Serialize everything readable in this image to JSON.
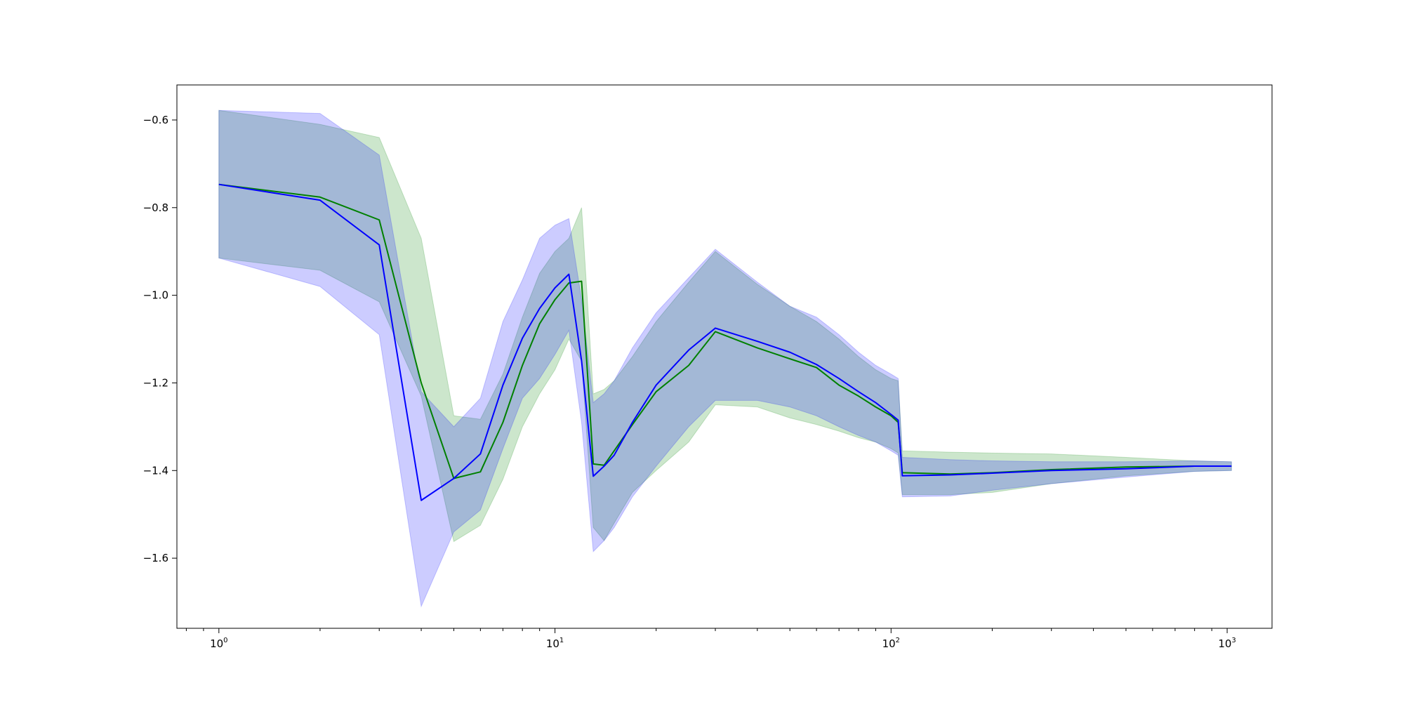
{
  "chart_data": {
    "type": "line",
    "x_scale": "log",
    "xlim": [
      0.75,
      1360
    ],
    "ylim": [
      -1.76,
      -0.52
    ],
    "grid": false,
    "x_major_ticks": [
      1,
      10,
      100,
      1000
    ],
    "x_tick_labels": [
      {
        "base": "10",
        "exp": "0"
      },
      {
        "base": "10",
        "exp": "1"
      },
      {
        "base": "10",
        "exp": "2"
      },
      {
        "base": "10",
        "exp": "3"
      }
    ],
    "y_ticks": [
      -1.6,
      -1.4,
      -1.2,
      -1.0,
      -0.8,
      -0.6
    ],
    "y_tick_labels": [
      "−1.6",
      "−1.4",
      "−1.2",
      "−1.0",
      "−0.8",
      "−0.6"
    ],
    "series": [
      {
        "color": "#008000",
        "band_color": "#008000",
        "points": [
          [
            1,
            -0.747,
            -0.578,
            -0.915
          ],
          [
            2,
            -0.776,
            -0.61,
            -0.943
          ],
          [
            3,
            -0.828,
            -0.64,
            -1.015
          ],
          [
            4,
            -1.2,
            -0.87,
            -1.23
          ],
          [
            5,
            -1.418,
            -1.275,
            -1.562
          ],
          [
            6,
            -1.403,
            -1.283,
            -1.525
          ],
          [
            7,
            -1.29,
            -1.18,
            -1.42
          ],
          [
            8,
            -1.16,
            -1.05,
            -1.3
          ],
          [
            9,
            -1.065,
            -0.95,
            -1.225
          ],
          [
            10,
            -1.01,
            -0.9,
            -1.17
          ],
          [
            11,
            -0.972,
            -0.87,
            -1.1
          ],
          [
            12,
            -0.968,
            -0.8,
            -1.15
          ],
          [
            13,
            -1.385,
            -1.225,
            -1.53
          ],
          [
            14,
            -1.388,
            -1.215,
            -1.56
          ],
          [
            15,
            -1.355,
            -1.195,
            -1.52
          ],
          [
            17,
            -1.295,
            -1.14,
            -1.45
          ],
          [
            20,
            -1.22,
            -1.06,
            -1.4
          ],
          [
            25,
            -1.16,
            -0.97,
            -1.335
          ],
          [
            30,
            -1.083,
            -0.9,
            -1.25
          ],
          [
            40,
            -1.12,
            -0.975,
            -1.255
          ],
          [
            50,
            -1.145,
            -1.025,
            -1.28
          ],
          [
            60,
            -1.165,
            -1.06,
            -1.295
          ],
          [
            70,
            -1.205,
            -1.1,
            -1.31
          ],
          [
            80,
            -1.23,
            -1.14,
            -1.325
          ],
          [
            90,
            -1.255,
            -1.17,
            -1.335
          ],
          [
            100,
            -1.275,
            -1.19,
            -1.35
          ],
          [
            105,
            -1.29,
            -1.195,
            -1.36
          ],
          [
            108,
            -1.405,
            -1.355,
            -1.455
          ],
          [
            150,
            -1.408,
            -1.358,
            -1.455
          ],
          [
            200,
            -1.405,
            -1.36,
            -1.45
          ],
          [
            300,
            -1.398,
            -1.362,
            -1.43
          ],
          [
            500,
            -1.392,
            -1.37,
            -1.412
          ],
          [
            800,
            -1.39,
            -1.378,
            -1.402
          ],
          [
            1030,
            -1.39,
            -1.38,
            -1.4
          ]
        ]
      },
      {
        "color": "#0000ff",
        "band_color": "#0000ff",
        "points": [
          [
            1,
            -0.747,
            -0.578,
            -0.915
          ],
          [
            2,
            -0.783,
            -0.585,
            -0.98
          ],
          [
            3,
            -0.885,
            -0.68,
            -1.09
          ],
          [
            4,
            -1.468,
            -1.22,
            -1.71
          ],
          [
            5,
            -1.418,
            -1.3,
            -1.54
          ],
          [
            6,
            -1.362,
            -1.235,
            -1.49
          ],
          [
            7,
            -1.205,
            -1.06,
            -1.35
          ],
          [
            8,
            -1.098,
            -0.965,
            -1.235
          ],
          [
            9,
            -1.03,
            -0.87,
            -1.19
          ],
          [
            10,
            -0.983,
            -0.84,
            -1.135
          ],
          [
            11,
            -0.952,
            -0.825,
            -1.08
          ],
          [
            12,
            -1.15,
            -1.01,
            -1.29
          ],
          [
            13,
            -1.413,
            -1.245,
            -1.585
          ],
          [
            14,
            -1.39,
            -1.225,
            -1.56
          ],
          [
            15,
            -1.365,
            -1.195,
            -1.53
          ],
          [
            17,
            -1.29,
            -1.12,
            -1.46
          ],
          [
            20,
            -1.205,
            -1.04,
            -1.39
          ],
          [
            25,
            -1.125,
            -0.96,
            -1.3
          ],
          [
            30,
            -1.075,
            -0.895,
            -1.24
          ],
          [
            40,
            -1.105,
            -0.97,
            -1.24
          ],
          [
            50,
            -1.13,
            -1.025,
            -1.255
          ],
          [
            60,
            -1.158,
            -1.05,
            -1.275
          ],
          [
            70,
            -1.19,
            -1.09,
            -1.3
          ],
          [
            80,
            -1.22,
            -1.13,
            -1.32
          ],
          [
            90,
            -1.245,
            -1.16,
            -1.335
          ],
          [
            100,
            -1.272,
            -1.18,
            -1.355
          ],
          [
            105,
            -1.285,
            -1.19,
            -1.365
          ],
          [
            108,
            -1.412,
            -1.37,
            -1.46
          ],
          [
            150,
            -1.41,
            -1.375,
            -1.458
          ],
          [
            200,
            -1.406,
            -1.378,
            -1.445
          ],
          [
            300,
            -1.4,
            -1.38,
            -1.43
          ],
          [
            500,
            -1.396,
            -1.38,
            -1.415
          ],
          [
            800,
            -1.39,
            -1.378,
            -1.402
          ],
          [
            1030,
            -1.39,
            -1.38,
            -1.4
          ]
        ]
      }
    ]
  }
}
